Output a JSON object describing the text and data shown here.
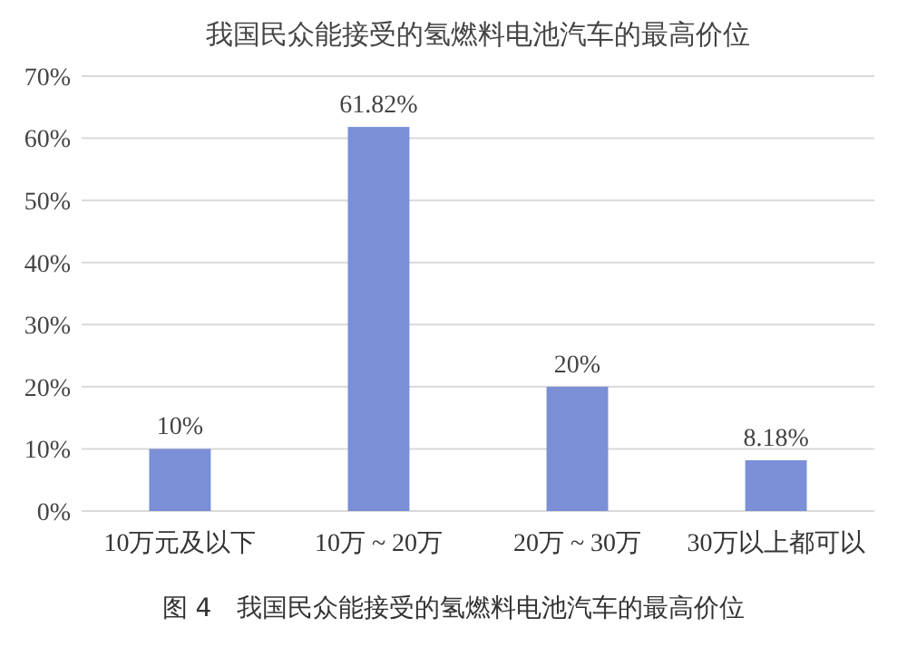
{
  "chart_data": {
    "type": "bar",
    "title": "我国民众能接受的氢燃料电池汽车的最高价位",
    "categories": [
      "10万元及以下",
      "10万 ~ 20万",
      "20万 ~ 30万",
      "30万以上都可以"
    ],
    "values": [
      10,
      61.82,
      20,
      8.18
    ],
    "color": "#7a8fd6",
    "value_labels": [
      "10%",
      "61.82%",
      "20%",
      "8.18%"
    ],
    "ylim": [
      0,
      70
    ],
    "yticks": [
      {
        "value": 0,
        "label": "0%"
      },
      {
        "value": 10,
        "label": "10%"
      },
      {
        "value": 20,
        "label": "20%"
      },
      {
        "value": 30,
        "label": "30%"
      },
      {
        "value": 40,
        "label": "40%"
      },
      {
        "value": 50,
        "label": "50%"
      },
      {
        "value": 60,
        "label": "60%"
      },
      {
        "value": 70,
        "label": "70%"
      }
    ],
    "grid": "y",
    "annotations": [
      "图 4　我国民众能接受的氢燃料电池汽车的最高价位"
    ]
  }
}
